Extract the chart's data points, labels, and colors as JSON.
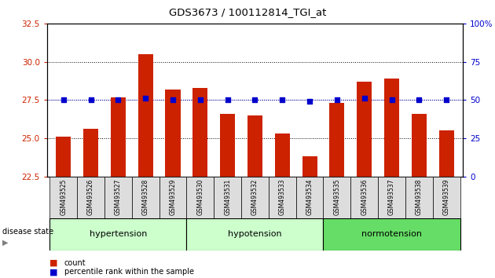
{
  "title": "GDS3673 / 100112814_TGI_at",
  "samples": [
    "GSM493525",
    "GSM493526",
    "GSM493527",
    "GSM493528",
    "GSM493529",
    "GSM493530",
    "GSM493531",
    "GSM493532",
    "GSM493533",
    "GSM493534",
    "GSM493535",
    "GSM493536",
    "GSM493537",
    "GSM493538",
    "GSM493539"
  ],
  "counts": [
    25.1,
    25.6,
    27.7,
    30.5,
    28.2,
    28.3,
    26.6,
    26.5,
    25.3,
    23.8,
    27.3,
    28.7,
    28.9,
    26.6,
    25.5
  ],
  "percentiles": [
    27.5,
    27.5,
    27.5,
    27.6,
    27.5,
    27.5,
    27.5,
    27.5,
    27.5,
    27.4,
    27.5,
    27.6,
    27.5,
    27.5,
    27.5
  ],
  "groups": [
    {
      "label": "hypertension",
      "start": 0,
      "end": 5,
      "color": "#ccffcc"
    },
    {
      "label": "hypotension",
      "start": 5,
      "end": 10,
      "color": "#ccffcc"
    },
    {
      "label": "normotension",
      "start": 10,
      "end": 15,
      "color": "#66dd66"
    }
  ],
  "ylim_left": [
    22.5,
    32.5
  ],
  "ylim_right": [
    0,
    100
  ],
  "yticks_left": [
    22.5,
    25.0,
    27.5,
    30.0,
    32.5
  ],
  "yticks_right": [
    0,
    25,
    50,
    75,
    100
  ],
  "bar_color": "#cc2200",
  "dot_color": "#0000cc",
  "bg_label": "#dddddd",
  "left_tick_color": "#cc2200",
  "right_tick_color": "#0000cc"
}
